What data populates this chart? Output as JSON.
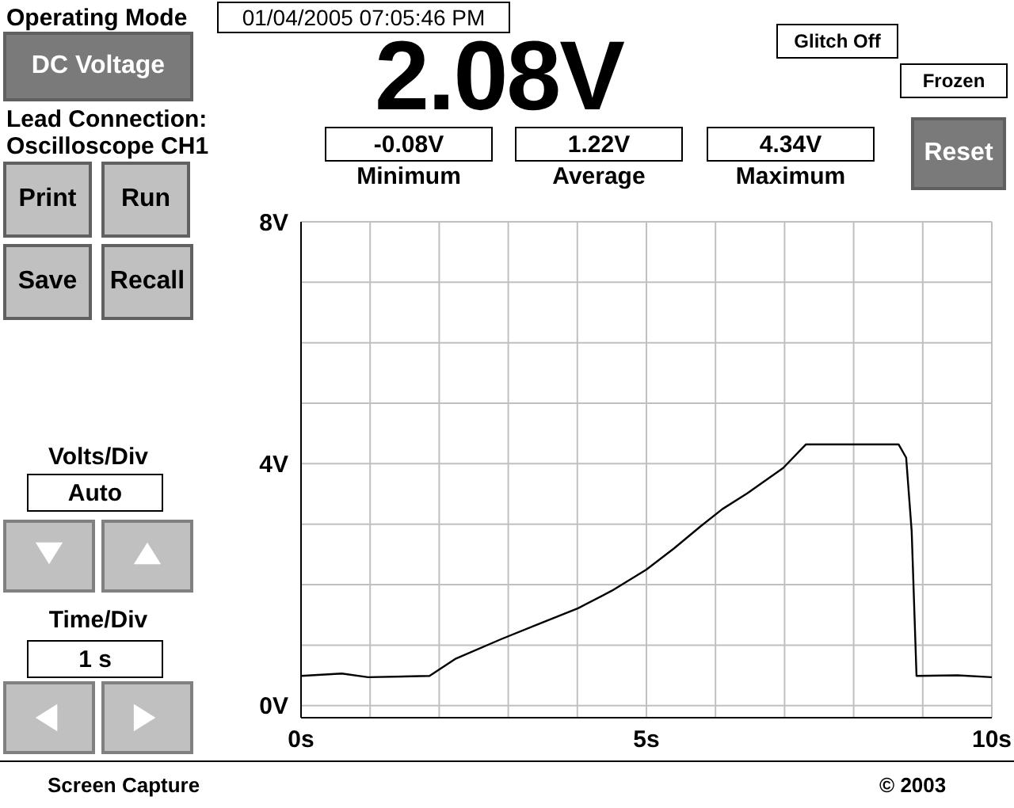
{
  "chart_data": {
    "type": "line",
    "title": "2.08V",
    "x": [
      0,
      0.59,
      0.97,
      1.86,
      2.23,
      2.9,
      3.4,
      4.01,
      4.5,
      5.0,
      5.4,
      5.79,
      6.1,
      6.46,
      6.98,
      7.31,
      8.0,
      8.65,
      8.76,
      8.84,
      8.91,
      9.5,
      10
    ],
    "values": [
      0.49,
      0.53,
      0.47,
      0.49,
      0.77,
      1.1,
      1.33,
      1.61,
      1.9,
      2.25,
      2.6,
      2.97,
      3.25,
      3.51,
      3.93,
      4.32,
      4.32,
      4.32,
      4.1,
      2.88,
      0.49,
      0.5,
      0.47
    ],
    "color": "#000000",
    "xlim": [
      0,
      10
    ],
    "ylim": [
      -0.2,
      8
    ],
    "xticks": [
      {
        "value": 0,
        "label": "0s"
      },
      {
        "value": 1,
        "label": null
      },
      {
        "value": 2,
        "label": null
      },
      {
        "value": 3,
        "label": null
      },
      {
        "value": 4,
        "label": null
      },
      {
        "value": 5,
        "label": "5s"
      },
      {
        "value": 6,
        "label": null
      },
      {
        "value": 7,
        "label": null
      },
      {
        "value": 8,
        "label": null
      },
      {
        "value": 9,
        "label": null
      },
      {
        "value": 10,
        "label": "10s"
      }
    ],
    "yticks": [
      {
        "value": 0,
        "label": "0V"
      },
      {
        "value": 1,
        "label": null
      },
      {
        "value": 2,
        "label": null
      },
      {
        "value": 3,
        "label": null
      },
      {
        "value": 4,
        "label": "4V"
      },
      {
        "value": 5,
        "label": null
      },
      {
        "value": 6,
        "label": null
      },
      {
        "value": 7,
        "label": null
      },
      {
        "value": 8,
        "label": "8V"
      }
    ],
    "grid": true,
    "annotations": [
      "Operating Mode",
      "01/04/2005 07:05:46 PM",
      "Glitch Off",
      "Frozen",
      "DC Voltage",
      "Lead Connection:",
      "Oscilloscope CH1",
      "-0.08V",
      "Minimum",
      "1.22V",
      "Average",
      "4.34V",
      "Maximum",
      "Reset",
      "Print",
      "Run",
      "Save",
      "Recall",
      "Volts/Div",
      "Auto",
      "Time/Div",
      "1 s",
      "Screen Capture",
      "© 2003"
    ]
  }
}
